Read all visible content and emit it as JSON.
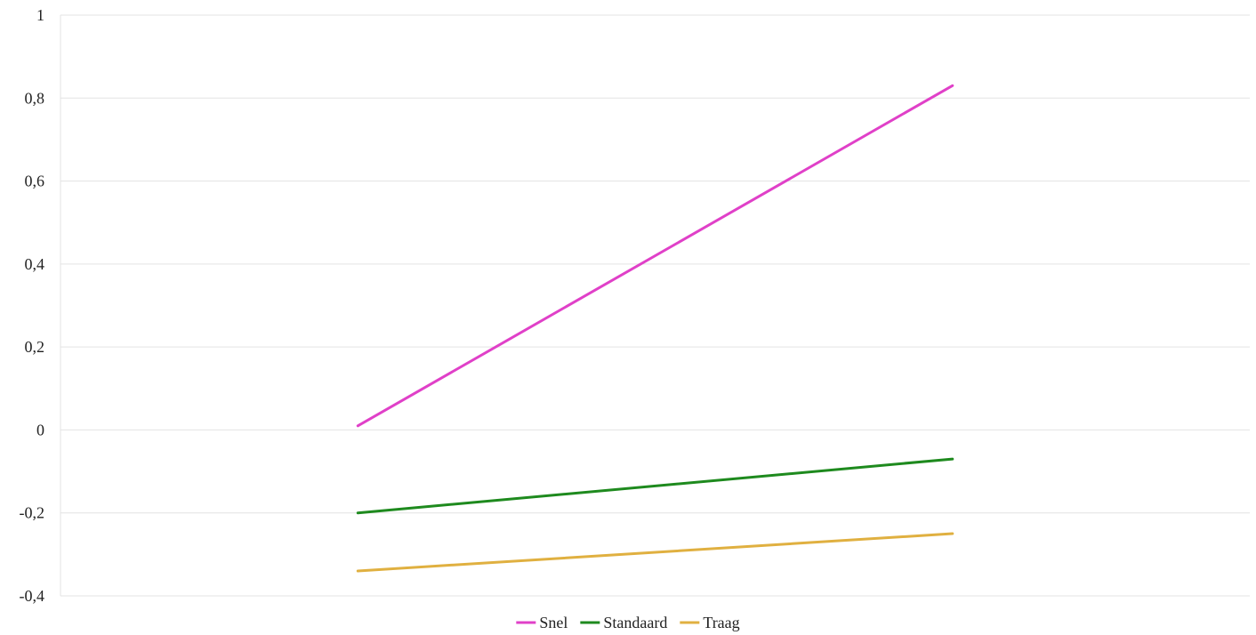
{
  "chart_data": {
    "type": "line",
    "title": "",
    "xlabel": "",
    "ylabel": "",
    "categories": [
      "",
      ""
    ],
    "ylim": [
      -0.4,
      1
    ],
    "yticks": [
      "-0,4",
      "-0,2",
      "0",
      "0,2",
      "0,4",
      "0,6",
      "0,8",
      "1"
    ],
    "ytick_values": [
      -0.4,
      -0.2,
      0,
      0.2,
      0.4,
      0.6,
      0.8,
      1
    ],
    "grid": true,
    "legend_position": "bottom",
    "series": [
      {
        "name": "Snel",
        "values": [
          0.01,
          0.83
        ],
        "color": "#e040c8"
      },
      {
        "name": "Standaard",
        "values": [
          -0.2,
          -0.07
        ],
        "color": "#1e8a1e"
      },
      {
        "name": "Traag",
        "values": [
          -0.34,
          -0.25
        ],
        "color": "#e0b040"
      }
    ]
  }
}
